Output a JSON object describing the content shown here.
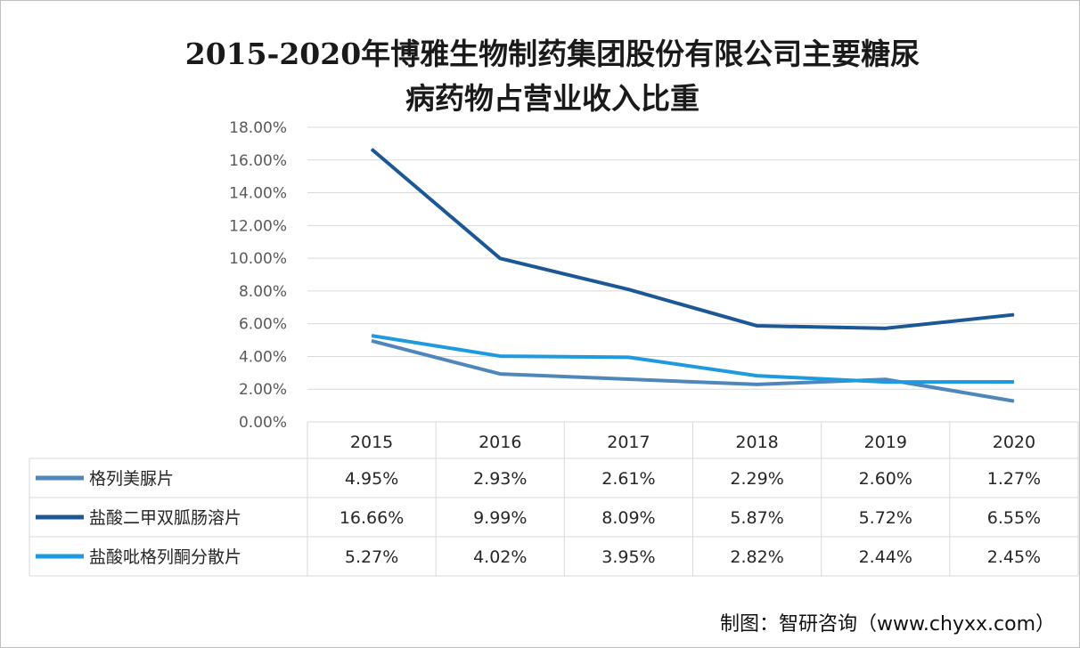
{
  "chart_data": {
    "type": "line",
    "title": "2015-2020年博雅生物制药集团股份有限公司主要糖尿病药物占营业收入比重",
    "title_lines": [
      "2015-2020年博雅生物制药集团股份有限公司主要糖尿",
      "病药物占营业收入比重"
    ],
    "categories": [
      "2015",
      "2016",
      "2017",
      "2018",
      "2019",
      "2020"
    ],
    "ylim": [
      0,
      18
    ],
    "yticks": [
      "0.00%",
      "2.00%",
      "4.00%",
      "6.00%",
      "8.00%",
      "10.00%",
      "12.00%",
      "14.00%",
      "16.00%",
      "18.00%"
    ],
    "grid": true,
    "legend": "data-table",
    "series": [
      {
        "name": "格列美脲片",
        "color": "#4f87ba",
        "values": [
          4.95,
          2.93,
          2.61,
          2.29,
          2.6,
          1.27
        ],
        "labels": [
          "4.95%",
          "2.93%",
          "2.61%",
          "2.29%",
          "2.60%",
          "1.27%"
        ]
      },
      {
        "name": "盐酸二甲双胍肠溶片",
        "color": "#1c5796",
        "values": [
          16.66,
          9.99,
          8.09,
          5.87,
          5.72,
          6.55
        ],
        "labels": [
          "16.66%",
          "9.99%",
          "8.09%",
          "5.87%",
          "5.72%",
          "6.55%"
        ]
      },
      {
        "name": "盐酸吡格列酮分散片",
        "color": "#1e9be0",
        "values": [
          5.27,
          4.02,
          3.95,
          2.82,
          2.44,
          2.45
        ],
        "labels": [
          "5.27%",
          "4.02%",
          "3.95%",
          "2.82%",
          "2.44%",
          "2.45%"
        ]
      }
    ]
  },
  "footer": "制图：智研咨询（www.chyxx.com）"
}
